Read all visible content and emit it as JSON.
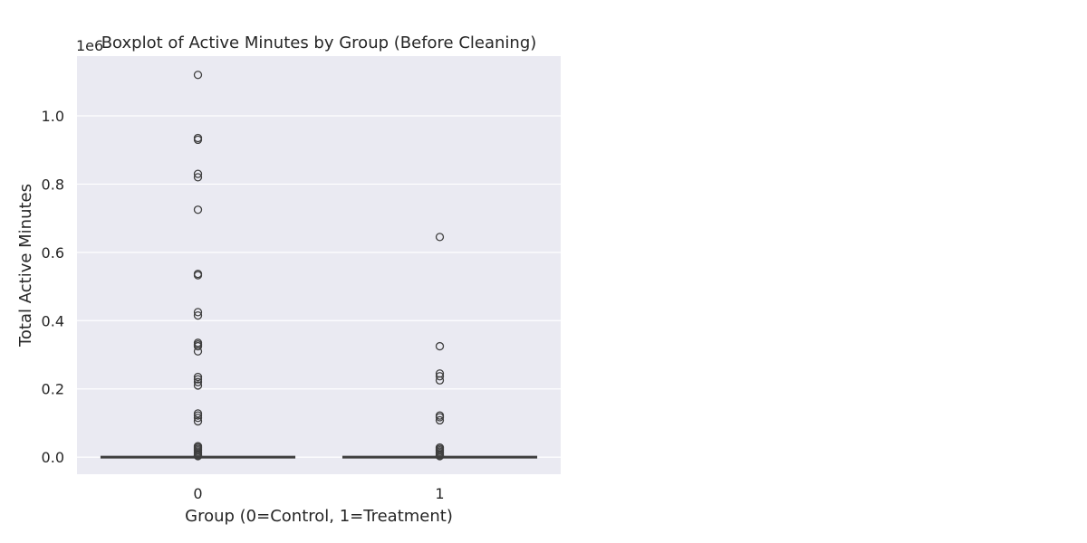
{
  "chart_data": {
    "type": "boxplot",
    "title": "Boxplot of Active Minutes by Group (Before Cleaning)",
    "xlabel": "Group (0=Control, 1=Treatment)",
    "ylabel": "Total Active Minutes",
    "y_offset_text": "1e6",
    "categories": [
      "0",
      "1"
    ],
    "ylim": [
      -0.05,
      1.175
    ],
    "yticks": [
      0.0,
      0.2,
      0.4,
      0.6,
      0.8,
      1.0
    ],
    "ytick_labels": [
      "0.0",
      "0.2",
      "0.4",
      "0.6",
      "0.8",
      "1.0"
    ],
    "grid": true,
    "boxes": [
      {
        "q1": 0.0,
        "median": 0.0,
        "q3": 0.0,
        "whisker_low": 0.0,
        "whisker_high": 0.0
      },
      {
        "q1": 0.0,
        "median": 0.0,
        "q3": 0.0,
        "whisker_low": 0.0,
        "whisker_high": 0.0
      }
    ],
    "outliers": [
      [
        1.12,
        0.935,
        0.93,
        0.83,
        0.82,
        0.725,
        0.537,
        0.533,
        0.425,
        0.415,
        0.335,
        0.33,
        0.325,
        0.31,
        0.235,
        0.228,
        0.22,
        0.21,
        0.128,
        0.122,
        0.115,
        0.105,
        0.032,
        0.028,
        0.024,
        0.02,
        0.016,
        0.012,
        0.008,
        0.005,
        0.003
      ],
      [
        0.645,
        0.325,
        0.245,
        0.237,
        0.225,
        0.122,
        0.117,
        0.108,
        0.028,
        0.024,
        0.02,
        0.016,
        0.012,
        0.008,
        0.005,
        0.003
      ]
    ],
    "colors": {
      "plot_background": "#eaeaf2",
      "grid": "#ffffff",
      "box_line": "#3f3f3f",
      "text": "#262626"
    }
  }
}
